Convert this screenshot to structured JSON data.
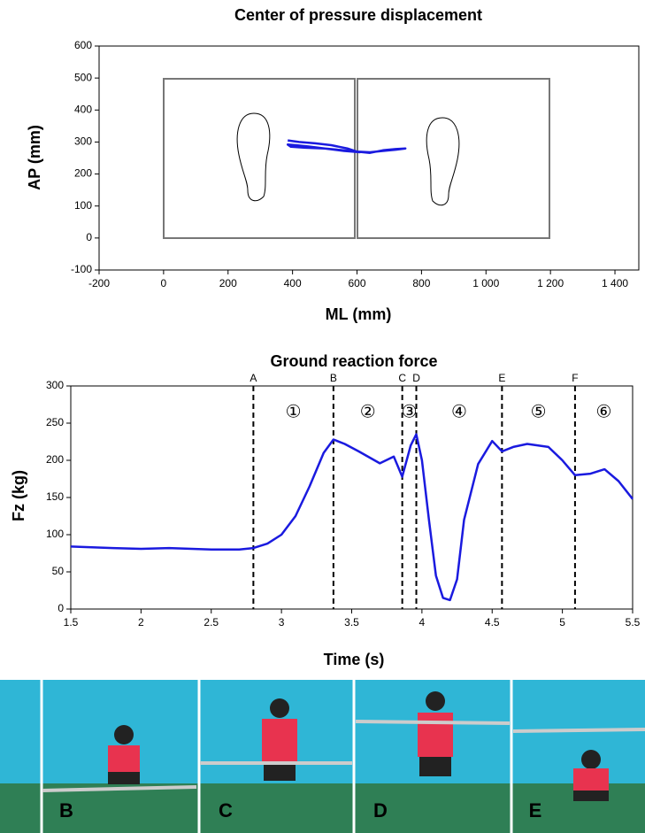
{
  "chart_data": [
    {
      "type": "line",
      "title": "Center of pressure displacement",
      "xlabel": "ML (mm)",
      "ylabel": "AP (mm)",
      "xlim": [
        -200,
        1474
      ],
      "ylim": [
        -100,
        600
      ],
      "xticks": [
        -200,
        0,
        200,
        400,
        600,
        800,
        {
          "value": 1000,
          "label": "1 000"
        },
        {
          "value": 1200,
          "label": "1 200"
        },
        {
          "value": 1400,
          "label": "1 400"
        }
      ],
      "yticks": [
        -100,
        0,
        100,
        200,
        300,
        400,
        500,
        600
      ],
      "color": "#1a1adf",
      "x": [
        385,
        420,
        470,
        520,
        570,
        600,
        640,
        680,
        720,
        750,
        720,
        680,
        640,
        600,
        550,
        500,
        450,
        410,
        385,
        395,
        440,
        500,
        560,
        610
      ],
      "values": [
        305,
        300,
        296,
        290,
        280,
        270,
        268,
        272,
        276,
        280,
        278,
        274,
        266,
        270,
        275,
        280,
        286,
        290,
        292,
        285,
        282,
        280,
        272,
        268
      ]
    },
    {
      "type": "line",
      "title": "Ground reaction force",
      "xlabel": "Time (s)",
      "ylabel": "Fz (kg)",
      "xlim": [
        1.5,
        5.5
      ],
      "ylim": [
        0,
        300
      ],
      "xticks": [
        1.5,
        2,
        2.5,
        3,
        3.5,
        4,
        4.5,
        5,
        5.5
      ],
      "yticks": [
        0,
        50,
        100,
        150,
        200,
        250,
        300
      ],
      "color": "#1a1adf",
      "x": [
        1.5,
        1.8,
        2.0,
        2.2,
        2.5,
        2.7,
        2.8,
        2.9,
        3.0,
        3.1,
        3.2,
        3.3,
        3.37,
        3.45,
        3.55,
        3.7,
        3.8,
        3.86,
        3.92,
        3.96,
        4.0,
        4.05,
        4.1,
        4.15,
        4.2,
        4.25,
        4.3,
        4.4,
        4.5,
        4.57,
        4.65,
        4.75,
        4.9,
        5.0,
        5.09,
        5.2,
        5.3,
        5.4,
        5.5
      ],
      "values": [
        84,
        82,
        81,
        82,
        80,
        80,
        82,
        88,
        100,
        125,
        165,
        210,
        228,
        222,
        212,
        196,
        205,
        178,
        220,
        235,
        200,
        120,
        45,
        15,
        12,
        40,
        120,
        195,
        226,
        212,
        218,
        222,
        218,
        200,
        180,
        182,
        188,
        172,
        148
      ],
      "events": [
        {
          "label": "A",
          "x": 2.8
        },
        {
          "label": "B",
          "x": 3.37
        },
        {
          "label": "C",
          "x": 3.86
        },
        {
          "label": "D",
          "x": 3.96
        },
        {
          "label": "E",
          "x": 4.57
        },
        {
          "label": "F",
          "x": 5.09
        }
      ],
      "phases": [
        "①",
        "②",
        "③",
        "④",
        "⑤",
        "⑥"
      ]
    }
  ],
  "photos": {
    "labels": [
      "B",
      "C",
      "D",
      "E"
    ]
  }
}
